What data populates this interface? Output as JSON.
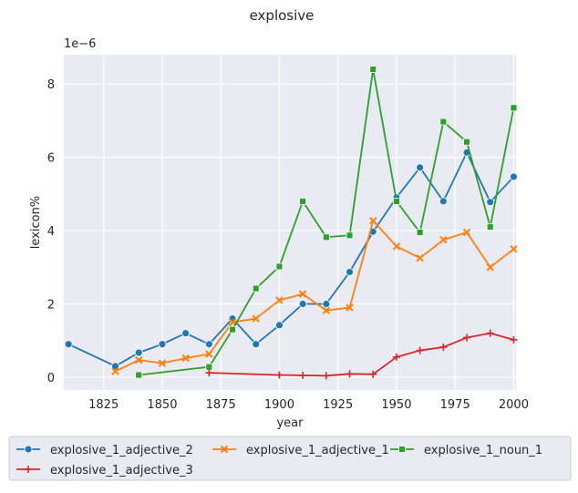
{
  "chart_data": {
    "type": "line",
    "title": "explosive",
    "xlabel": "year",
    "ylabel": "lexicon%",
    "y_offset_label": "1e−6",
    "xlim": [
      1808,
      2001
    ],
    "ylim": [
      -0.35,
      8.8
    ],
    "x_ticks": [
      1825,
      1850,
      1875,
      1900,
      1925,
      1950,
      1975,
      2000
    ],
    "x_tick_labels": [
      "1825",
      "1850",
      "1875",
      "1900",
      "1925",
      "1950",
      "1975",
      "2000"
    ],
    "y_ticks": [
      0,
      2,
      4,
      6,
      8
    ],
    "y_tick_labels": [
      "0",
      "2",
      "4",
      "6",
      "8"
    ],
    "grid": true,
    "background": "#eaeaf2",
    "legend_position": "below plot",
    "series": [
      {
        "name": "explosive_1_adjective_2",
        "color": "#1f77b4",
        "marker": "circle",
        "x": [
          1810,
          1830,
          1840,
          1850,
          1860,
          1870,
          1880,
          1890,
          1900,
          1910,
          1920,
          1930,
          1940,
          1950,
          1960,
          1970,
          1980,
          1990,
          2000
        ],
        "values": [
          0.9,
          0.3,
          0.67,
          0.9,
          1.2,
          0.9,
          1.6,
          0.9,
          1.42,
          2.0,
          2.0,
          2.87,
          3.97,
          4.9,
          5.72,
          4.8,
          6.13,
          4.78,
          5.47
        ]
      },
      {
        "name": "explosive_1_adjective_1",
        "color": "#ff7f0e",
        "marker": "x",
        "x": [
          1830,
          1840,
          1850,
          1860,
          1870,
          1880,
          1890,
          1900,
          1910,
          1920,
          1930,
          1940,
          1950,
          1960,
          1970,
          1980,
          1990,
          2000
        ],
        "values": [
          0.16,
          0.47,
          0.38,
          0.52,
          0.63,
          1.5,
          1.6,
          2.1,
          2.27,
          1.82,
          1.9,
          4.27,
          3.57,
          3.25,
          3.75,
          3.95,
          3.0,
          3.5
        ]
      },
      {
        "name": "explosive_1_noun_1",
        "color": "#2ca02c",
        "marker": "square",
        "x": [
          1840,
          1870,
          1880,
          1890,
          1900,
          1910,
          1920,
          1930,
          1940,
          1950,
          1960,
          1970,
          1980,
          1990,
          2000
        ],
        "values": [
          0.06,
          0.28,
          1.3,
          2.42,
          3.02,
          4.8,
          3.82,
          3.87,
          8.4,
          4.8,
          3.95,
          6.97,
          6.42,
          4.1,
          7.35
        ]
      },
      {
        "name": "explosive_1_adjective_3",
        "color": "#d62728",
        "marker": "plus",
        "x": [
          1870,
          1900,
          1910,
          1920,
          1930,
          1940,
          1950,
          1960,
          1970,
          1980,
          1990,
          2000
        ],
        "values": [
          0.12,
          0.06,
          0.05,
          0.04,
          0.09,
          0.08,
          0.55,
          0.73,
          0.82,
          1.08,
          1.2,
          1.02
        ]
      }
    ]
  }
}
